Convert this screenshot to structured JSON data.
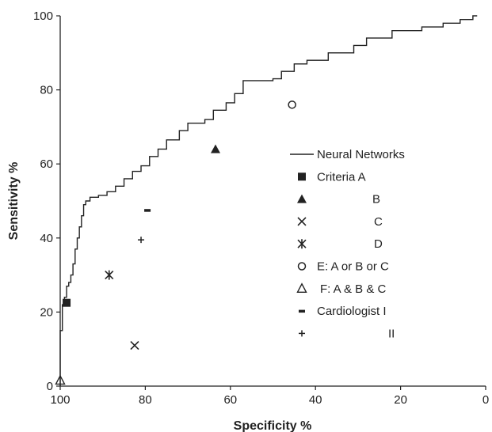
{
  "chart_data": {
    "type": "line",
    "xlabel": "Specificity %",
    "ylabel": "Sensitivity %",
    "xlim": [
      100,
      0
    ],
    "ylim": [
      0,
      100
    ],
    "xticks": [
      "100",
      "80",
      "60",
      "40",
      "20",
      "0"
    ],
    "yticks": [
      "0",
      "20",
      "40",
      "60",
      "80",
      "100"
    ],
    "grid": false,
    "legend_position": "right",
    "series": [
      {
        "name": "Neural Networks",
        "kind": "line",
        "points": [
          [
            100,
            0
          ],
          [
            100,
            15
          ],
          [
            99.5,
            17
          ],
          [
            99.5,
            22
          ],
          [
            99,
            24
          ],
          [
            98.5,
            27
          ],
          [
            98,
            28
          ],
          [
            97.5,
            30
          ],
          [
            97,
            33
          ],
          [
            96.5,
            37
          ],
          [
            96,
            40
          ],
          [
            95.5,
            43
          ],
          [
            95,
            46
          ],
          [
            94.5,
            49
          ],
          [
            94,
            50
          ],
          [
            93,
            51
          ],
          [
            91,
            51.5
          ],
          [
            89,
            52.5
          ],
          [
            87,
            54
          ],
          [
            85,
            56
          ],
          [
            83,
            58
          ],
          [
            81,
            59.5
          ],
          [
            79,
            62
          ],
          [
            77,
            64
          ],
          [
            75,
            66.5
          ],
          [
            72,
            69
          ],
          [
            70,
            71
          ],
          [
            66,
            72
          ],
          [
            64,
            74.5
          ],
          [
            61,
            76.5
          ],
          [
            59,
            79
          ],
          [
            57,
            82.5
          ],
          [
            50,
            83
          ],
          [
            48,
            85
          ],
          [
            45,
            87
          ],
          [
            42,
            88
          ],
          [
            37,
            90
          ],
          [
            31,
            92
          ],
          [
            28,
            94
          ],
          [
            22,
            96
          ],
          [
            15,
            97
          ],
          [
            10,
            98
          ],
          [
            6,
            99
          ],
          [
            3,
            100
          ],
          [
            2,
            100
          ]
        ]
      },
      {
        "name": "Criteria A",
        "kind": "marker",
        "marker": "square-filled",
        "x": 98.5,
        "y": 22.5
      },
      {
        "name": "B",
        "kind": "marker",
        "marker": "triangle-filled",
        "x": 63.5,
        "y": 64
      },
      {
        "name": "C",
        "kind": "marker",
        "marker": "x",
        "x": 82.5,
        "y": 11
      },
      {
        "name": "D",
        "kind": "marker",
        "marker": "asterisk",
        "x": 88.5,
        "y": 30
      },
      {
        "name": "E: A or B or C",
        "kind": "marker",
        "marker": "circle-open",
        "x": 45.5,
        "y": 76
      },
      {
        "name": "F: A & B & C",
        "kind": "marker",
        "marker": "triangle-open",
        "x": 100,
        "y": 1.5
      },
      {
        "name": "Cardiologist I",
        "kind": "marker",
        "marker": "dash",
        "x": 79.5,
        "y": 47.5
      },
      {
        "name": "II",
        "kind": "marker",
        "marker": "plus",
        "x": 81,
        "y": 39.5
      }
    ]
  }
}
